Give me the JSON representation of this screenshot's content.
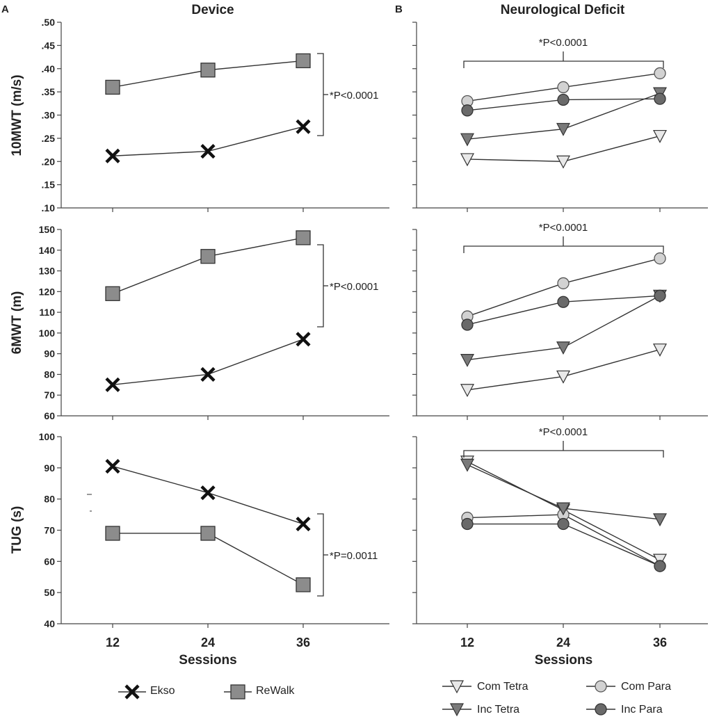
{
  "panel_labels": [
    "A",
    "B"
  ],
  "column_titles": {
    "device": "Device",
    "neuro": "Neurological Deficit"
  },
  "x_axis": {
    "label": "Sessions",
    "ticks": [
      "12",
      "24",
      "36"
    ]
  },
  "significance": {
    "device_10mwt": "*P<0.0001",
    "device_6mwt": "*P<0.0001",
    "device_tug": "*P=0.0011",
    "neuro_10mwt": "*P<0.0001",
    "neuro_6mwt": "*P<0.0001",
    "neuro_tug": "*P<0.0001"
  },
  "legend": {
    "ekso": "Ekso",
    "rewalk": "ReWalk",
    "com_tetra": "Com Tetra",
    "com_para": "Com Para",
    "inc_tetra": "Inc Tetra",
    "inc_para": "Inc Para"
  },
  "colors": {
    "rewalk": "#8c8c8c",
    "com_tetra": "#e8e8e8",
    "com_para": "#d2d2d2",
    "inc_tetra": "#7a7a7a",
    "inc_para": "#6a6a6a"
  },
  "chart_data": [
    {
      "id": "device-10mwt",
      "type": "line",
      "title": "Device",
      "xlabel": "",
      "ylabel": "10MWT (m/s)",
      "categories": [
        "12",
        "24",
        "36"
      ],
      "ylim": [
        0.1,
        0.5
      ],
      "yticks": [
        ".10",
        ".15",
        ".20",
        ".25",
        ".30",
        ".35",
        ".40",
        ".45",
        ".50"
      ],
      "series": [
        {
          "name": "Ekso",
          "marker": "x",
          "values": [
            0.212,
            0.222,
            0.275
          ]
        },
        {
          "name": "ReWalk",
          "marker": "square",
          "values": [
            0.36,
            0.397,
            0.417
          ]
        }
      ]
    },
    {
      "id": "device-6mwt",
      "type": "line",
      "title": "",
      "xlabel": "",
      "ylabel": "6MWT (m)",
      "categories": [
        "12",
        "24",
        "36"
      ],
      "ylim": [
        60,
        150
      ],
      "yticks": [
        "60",
        "70",
        "80",
        "90",
        "100",
        "110",
        "120",
        "130",
        "140",
        "150"
      ],
      "series": [
        {
          "name": "Ekso",
          "marker": "x",
          "values": [
            75,
            80,
            97
          ]
        },
        {
          "name": "ReWalk",
          "marker": "square",
          "values": [
            119,
            137,
            146
          ]
        }
      ]
    },
    {
      "id": "device-tug",
      "type": "line",
      "title": "",
      "xlabel": "Sessions",
      "ylabel": "TUG (s)",
      "categories": [
        "12",
        "24",
        "36"
      ],
      "ylim": [
        40,
        100
      ],
      "yticks": [
        "40",
        "50",
        "60",
        "70",
        "80",
        "90",
        "100"
      ],
      "series": [
        {
          "name": "Ekso",
          "marker": "x",
          "values": [
            90.5,
            82,
            72
          ]
        },
        {
          "name": "ReWalk",
          "marker": "square",
          "values": [
            69,
            69,
            52.5
          ]
        }
      ]
    },
    {
      "id": "neuro-10mwt",
      "type": "line",
      "title": "Neurological Deficit",
      "xlabel": "",
      "ylabel": "",
      "categories": [
        "12",
        "24",
        "36"
      ],
      "ylim": [
        0.1,
        0.5
      ],
      "series": [
        {
          "name": "Com Tetra",
          "marker": "tri-light",
          "values": [
            0.205,
            0.2,
            0.255
          ]
        },
        {
          "name": "Com Para",
          "marker": "circle-light",
          "values": [
            0.33,
            0.36,
            0.39
          ]
        },
        {
          "name": "Inc Tetra",
          "marker": "tri-dark",
          "values": [
            0.248,
            0.27,
            0.347
          ]
        },
        {
          "name": "Inc Para",
          "marker": "circle-dark",
          "values": [
            0.31,
            0.333,
            0.335
          ]
        }
      ]
    },
    {
      "id": "neuro-6mwt",
      "type": "line",
      "title": "",
      "xlabel": "",
      "ylabel": "",
      "categories": [
        "12",
        "24",
        "36"
      ],
      "ylim": [
        60,
        150
      ],
      "series": [
        {
          "name": "Com Tetra",
          "marker": "tri-light",
          "values": [
            72.5,
            79,
            92
          ]
        },
        {
          "name": "Com Para",
          "marker": "circle-light",
          "values": [
            108,
            124,
            136
          ]
        },
        {
          "name": "Inc Tetra",
          "marker": "tri-dark",
          "values": [
            87,
            93,
            118
          ]
        },
        {
          "name": "Inc Para",
          "marker": "circle-dark",
          "values": [
            104,
            115,
            118
          ]
        }
      ]
    },
    {
      "id": "neuro-tug",
      "type": "line",
      "title": "",
      "xlabel": "Sessions",
      "ylabel": "",
      "categories": [
        "12",
        "24",
        "36"
      ],
      "ylim": [
        40,
        100
      ],
      "series": [
        {
          "name": "Com Tetra",
          "marker": "tri-light",
          "values": [
            92,
            76.5,
            60.5
          ]
        },
        {
          "name": "Com Para",
          "marker": "circle-light",
          "values": [
            74,
            75,
            58.5
          ]
        },
        {
          "name": "Inc Tetra",
          "marker": "tri-dark",
          "values": [
            91,
            77,
            73.5
          ]
        },
        {
          "name": "Inc Para",
          "marker": "circle-dark",
          "values": [
            72,
            72,
            58.5
          ]
        }
      ]
    }
  ]
}
